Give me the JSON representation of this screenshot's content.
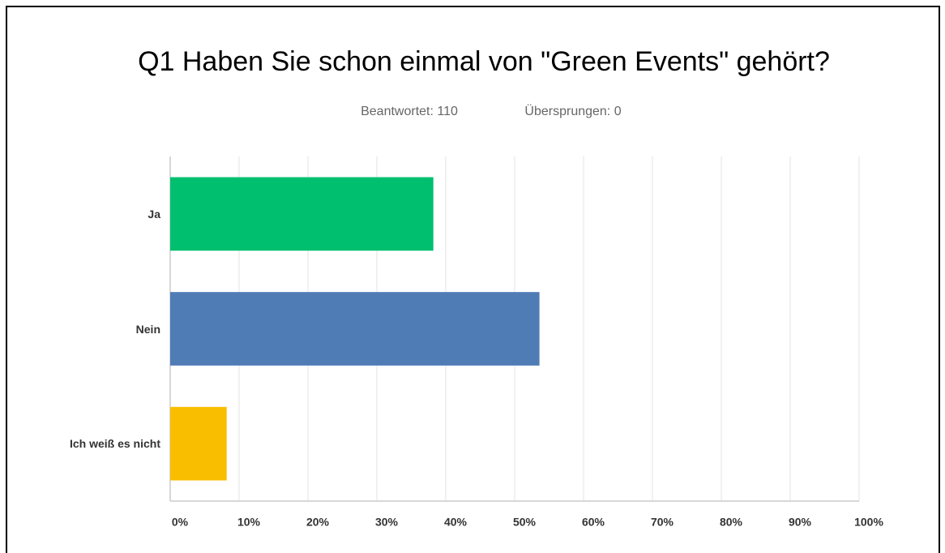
{
  "chart_data": {
    "type": "bar",
    "orientation": "horizontal",
    "title": "Q1 Haben Sie schon einmal von \"Green Events\" gehört?",
    "subtitle": [
      "Beantwortet: 110",
      "Übersprungen: 0"
    ],
    "categories": [
      "Ja",
      "Nein",
      "Ich weiß es nicht"
    ],
    "values": [
      38.2,
      53.6,
      8.2
    ],
    "colors": [
      "#00bf6f",
      "#507cb6",
      "#f9be00"
    ],
    "xlim": [
      0,
      100
    ],
    "xticks": [
      {
        "value": 0,
        "label": "0%"
      },
      {
        "value": 10,
        "label": "10%"
      },
      {
        "value": 20,
        "label": "20%"
      },
      {
        "value": 30,
        "label": "30%"
      },
      {
        "value": 40,
        "label": "40%"
      },
      {
        "value": 50,
        "label": "50%"
      },
      {
        "value": 60,
        "label": "60%"
      },
      {
        "value": 70,
        "label": "70%"
      },
      {
        "value": 80,
        "label": "80%"
      },
      {
        "value": 90,
        "label": "90%"
      },
      {
        "value": 100,
        "label": "100%"
      }
    ],
    "grid": true
  }
}
